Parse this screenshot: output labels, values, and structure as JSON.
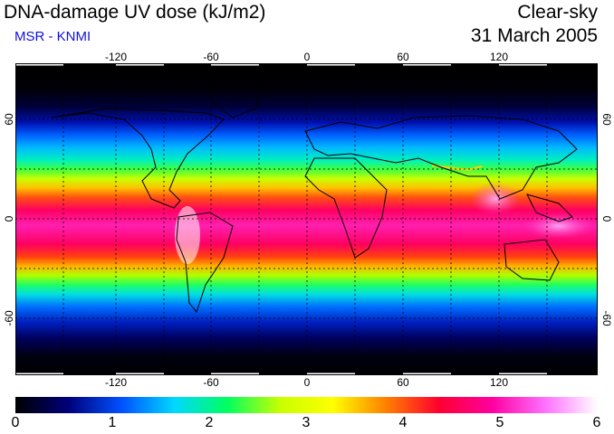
{
  "header": {
    "title": "DNA-damage UV dose (kJ/m2)",
    "source": "MSR - KNMI",
    "condition": "Clear-sky",
    "date": "31 March 2005"
  },
  "map": {
    "longitude_labels": [
      "-120",
      "-60",
      "0",
      "60",
      "120"
    ],
    "latitude_labels": [
      "60",
      "0",
      "-60"
    ],
    "gridlines": true
  },
  "colorbar": {
    "labels": [
      "0",
      "1",
      "2",
      "3",
      "4",
      "5",
      "6"
    ],
    "colors": [
      "#000000",
      "#00007a",
      "#0050ff",
      "#00d8ff",
      "#00ff60",
      "#c8ff00",
      "#ffff00",
      "#ff8000",
      "#ff0030",
      "#ff00a0",
      "#ff70ff",
      "#ffffff"
    ]
  }
}
